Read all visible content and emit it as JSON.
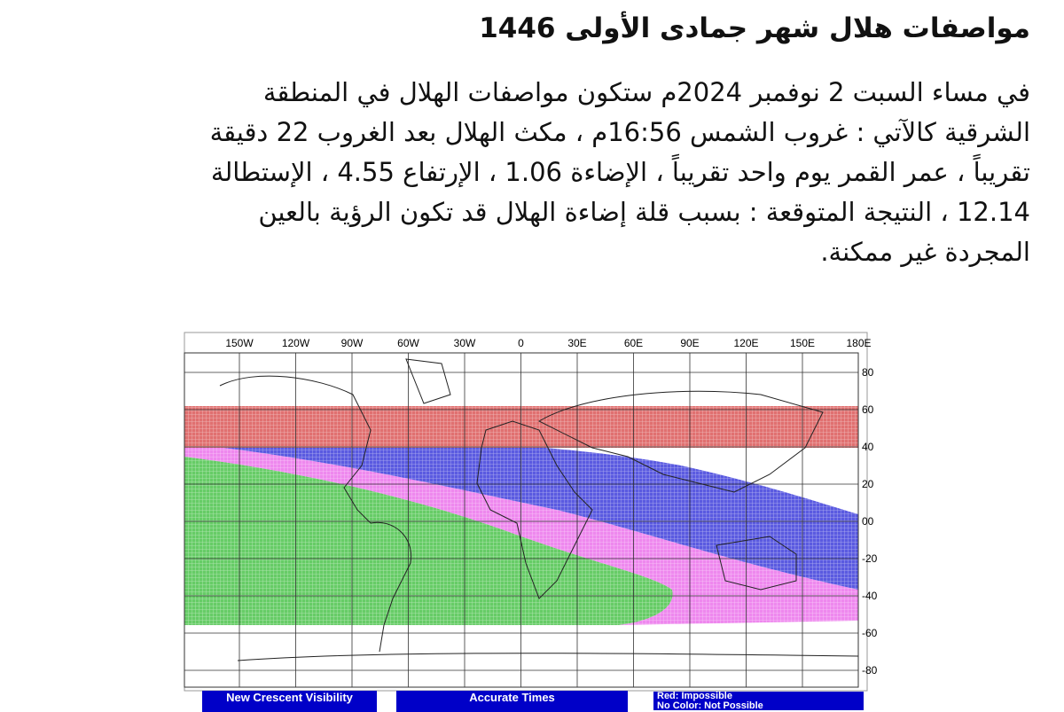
{
  "article": {
    "title": "مواصفات هلال شهر جمادى الأولى 1446",
    "lines": [
      "في مساء السبت 2 نوفمبر 2024م ستكون مواصفات الهلال في المنطقة",
      "الشرقية كالآتي : غروب الشمس 16:56م ، مكث الهلال بعد الغروب 22 دقيقة",
      "تقريباً ، عمر القمر يوم واحد تقريباً ، الإضاءة 1.06 ، الإرتفاع 4.55 ، الإستطالة",
      "12.14 ، النتيجة المتوقعة : بسبب قلة إضاءة الهلال قد تكون الرؤية بالعين",
      "المجردة غير ممكنة."
    ]
  },
  "map": {
    "longitude_labels": [
      "150W",
      "120W",
      "90W",
      "60W",
      "30W",
      "0",
      "30E",
      "60E",
      "90E",
      "120E",
      "150E",
      "180E"
    ],
    "latitude_labels": [
      "80",
      "60",
      "40",
      "20",
      "00",
      "-20",
      "-40",
      "-60",
      "-80"
    ],
    "colors": {
      "red": "#e07070",
      "blue": "#5a5ae0",
      "magenta": "#ee88ee",
      "green": "#66cc66",
      "legend_bg": "#0000c8"
    },
    "legend": {
      "box1": "New Crescent Visibility",
      "box2": "Accurate Times",
      "box3_line1": "Red: Impossible",
      "box3_line2": "No Color: Not Possible"
    }
  }
}
